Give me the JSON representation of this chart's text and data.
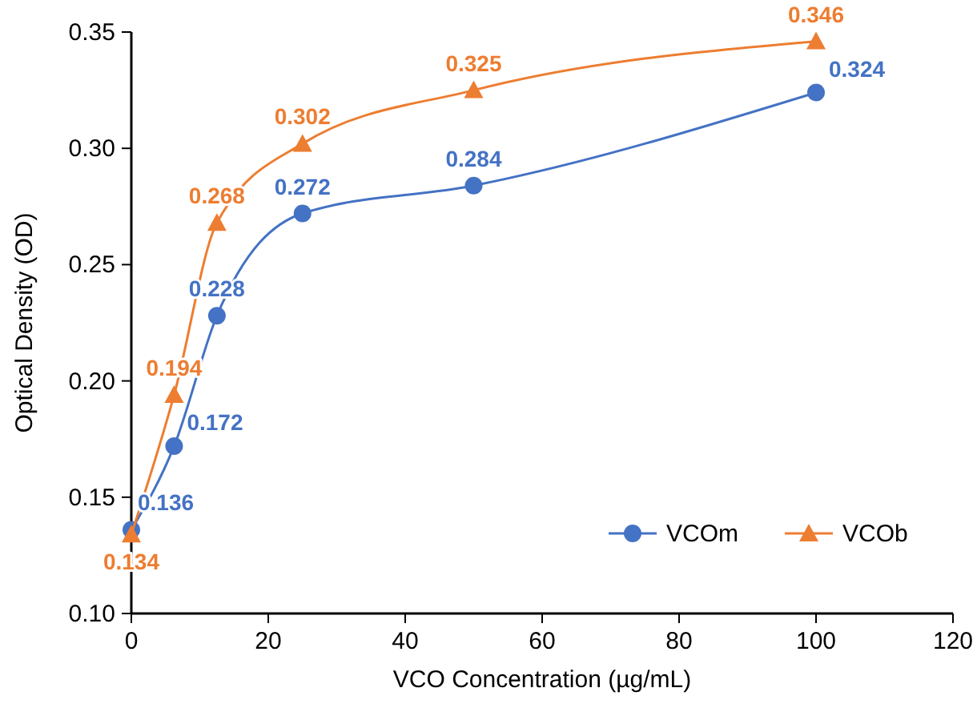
{
  "chart_data": {
    "type": "line",
    "xlabel": "VCO Concentration (µg/mL)",
    "ylabel": "Optical Density (OD)",
    "x": [
      0,
      6.25,
      12.5,
      25,
      50,
      100
    ],
    "series": [
      {
        "name": "VCOm",
        "color": "#4472c4",
        "marker": "circle",
        "values": [
          0.136,
          0.172,
          0.228,
          0.272,
          0.284,
          0.324
        ]
      },
      {
        "name": "VCOb",
        "color": "#ed7d31",
        "marker": "triangle",
        "values": [
          0.134,
          0.194,
          0.268,
          0.302,
          0.325,
          0.346
        ]
      }
    ],
    "xlim": [
      0,
      120
    ],
    "xticks": [
      0,
      20,
      40,
      60,
      80,
      100,
      120
    ],
    "ylim": [
      0.1,
      0.35
    ],
    "yticks": [
      {
        "value": 0.1,
        "label": "0.10"
      },
      {
        "value": 0.15,
        "label": "0.15"
      },
      {
        "value": 0.2,
        "label": "0.20"
      },
      {
        "value": 0.25,
        "label": "0.25"
      },
      {
        "value": 0.3,
        "label": "0.30"
      },
      {
        "value": 0.35,
        "label": "0.35"
      }
    ],
    "data_labels": true,
    "legend": "bottom right",
    "grid": false
  }
}
